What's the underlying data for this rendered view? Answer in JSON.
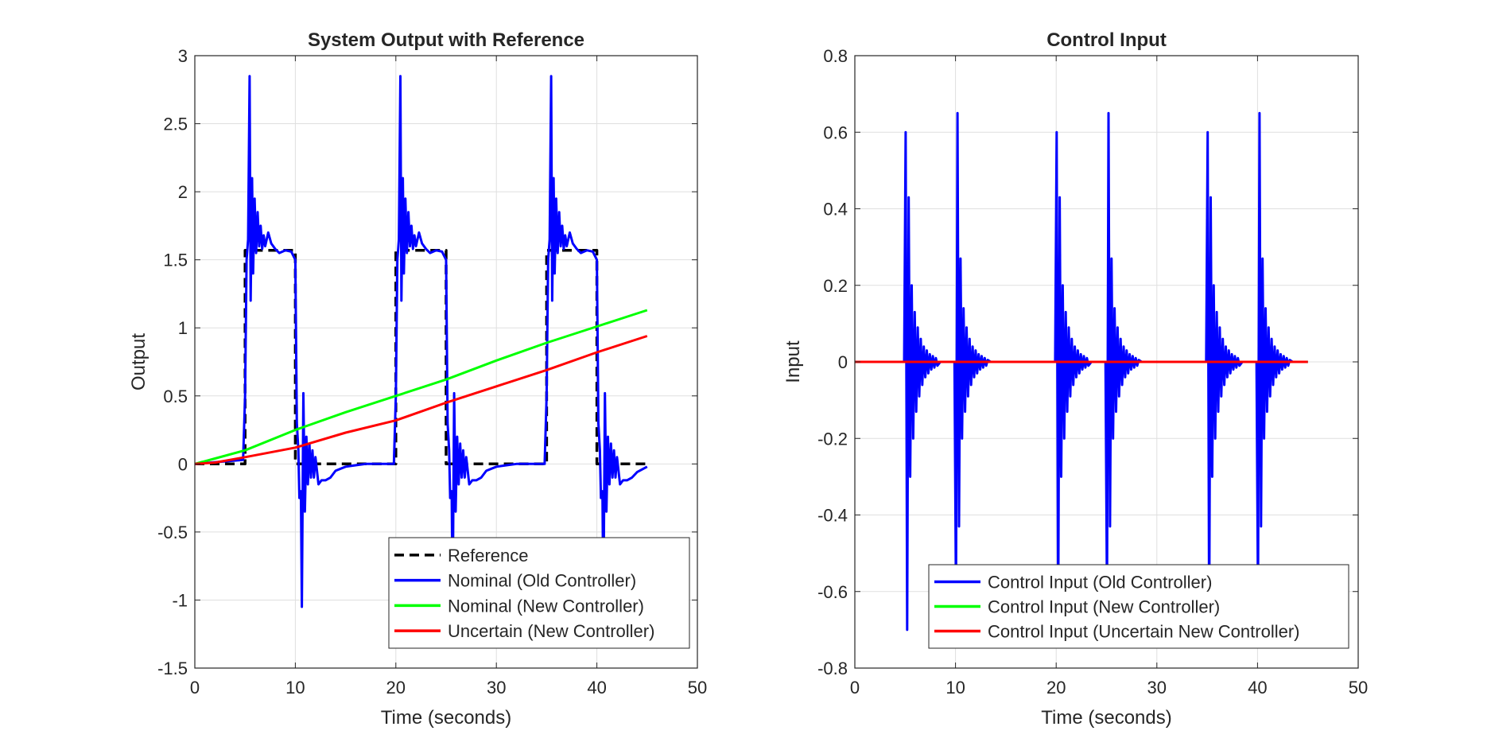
{
  "chart_data": [
    {
      "type": "line",
      "title": "System Output with Reference",
      "xlabel": "Time (seconds)",
      "ylabel": "Output",
      "xlim": [
        0,
        50
      ],
      "ylim": [
        -1.5,
        3
      ],
      "xticks": [
        "0",
        "10",
        "20",
        "30",
        "40",
        "50"
      ],
      "yticks": [
        "-1.5",
        "-1",
        "-0.5",
        "0",
        "0.5",
        "1",
        "1.5",
        "2",
        "2.5",
        "3"
      ],
      "grid": true,
      "legend_position": "bottom-right",
      "series": [
        {
          "name": "Reference",
          "color": "#000000",
          "style": "dashed",
          "x": [
            0,
            5,
            5,
            10,
            10,
            20,
            20,
            25,
            25,
            35,
            35,
            40,
            40,
            45
          ],
          "y": [
            0,
            0,
            1.57,
            1.57,
            0,
            0,
            1.57,
            1.57,
            0,
            0,
            1.57,
            1.57,
            0,
            0
          ]
        },
        {
          "name": "Nominal (Old Controller)",
          "color": "#0000ff",
          "style": "solid",
          "x": [
            0,
            4.8,
            5.0,
            5.15,
            5.3,
            5.45,
            5.55,
            5.7,
            5.8,
            5.95,
            6.1,
            6.25,
            6.4,
            6.55,
            6.7,
            6.85,
            7.0,
            7.3,
            7.6,
            8.0,
            8.4,
            9.0,
            9.6,
            10.0,
            10.15,
            10.3,
            10.4,
            10.55,
            10.65,
            10.8,
            10.95,
            11.1,
            11.25,
            11.4,
            11.55,
            11.7,
            11.85,
            12.0,
            12.3,
            12.6,
            13.0,
            13.5,
            14.0,
            15.0,
            16.0,
            17.0,
            18.0,
            19.0,
            19.8,
            20.0,
            20.15,
            20.3,
            20.45,
            20.55,
            20.7,
            20.8,
            20.95,
            21.1,
            21.25,
            21.4,
            21.55,
            21.7,
            21.85,
            22.0,
            22.3,
            22.6,
            23.0,
            23.4,
            24.0,
            24.6,
            25.0,
            25.15,
            25.3,
            25.4,
            25.55,
            25.65,
            25.8,
            25.95,
            26.1,
            26.25,
            26.4,
            26.55,
            26.7,
            26.85,
            27.0,
            27.3,
            27.6,
            28.0,
            28.5,
            29.0,
            30.0,
            31.0,
            32.0,
            33.0,
            34.0,
            34.8,
            35.0,
            35.15,
            35.3,
            35.45,
            35.55,
            35.7,
            35.8,
            35.95,
            36.1,
            36.25,
            36.4,
            36.55,
            36.7,
            36.85,
            37.0,
            37.3,
            37.6,
            38.0,
            38.4,
            39.0,
            39.6,
            40.0,
            40.15,
            40.3,
            40.4,
            40.55,
            40.65,
            40.8,
            40.95,
            41.1,
            41.25,
            41.4,
            41.55,
            41.7,
            41.85,
            42.0,
            42.3,
            42.6,
            43.0,
            43.5,
            44.0,
            44.5,
            45.0
          ],
          "y": [
            0,
            0.03,
            0.5,
            1.5,
            1.65,
            2.85,
            1.2,
            2.1,
            1.4,
            1.95,
            1.55,
            1.85,
            1.6,
            1.75,
            1.58,
            1.68,
            1.6,
            1.7,
            1.62,
            1.58,
            1.55,
            1.57,
            1.56,
            1.5,
            0.3,
            0.1,
            -0.25,
            -0.2,
            -1.05,
            0.52,
            -0.35,
            0.2,
            -0.15,
            0.15,
            -0.1,
            0.1,
            -0.1,
            0.05,
            -0.15,
            -0.12,
            -0.12,
            -0.1,
            -0.05,
            -0.02,
            -0.01,
            0,
            0,
            0,
            0,
            0.5,
            1.5,
            1.65,
            2.85,
            1.2,
            2.1,
            1.4,
            1.95,
            1.55,
            1.85,
            1.6,
            1.75,
            1.58,
            1.68,
            1.6,
            1.7,
            1.62,
            1.58,
            1.55,
            1.57,
            1.56,
            1.5,
            0.3,
            0.1,
            -0.25,
            -0.2,
            -1.05,
            0.52,
            -0.35,
            0.2,
            -0.15,
            0.15,
            -0.1,
            0.1,
            -0.1,
            0.05,
            -0.15,
            -0.12,
            -0.12,
            -0.1,
            -0.05,
            -0.02,
            -0.01,
            0,
            0,
            0,
            0,
            0.5,
            1.5,
            1.65,
            2.85,
            1.2,
            2.1,
            1.4,
            1.95,
            1.55,
            1.85,
            1.6,
            1.75,
            1.58,
            1.68,
            1.6,
            1.7,
            1.62,
            1.58,
            1.55,
            1.57,
            1.56,
            1.5,
            0.3,
            0.1,
            -0.25,
            -0.2,
            -1.05,
            0.52,
            -0.35,
            0.2,
            -0.15,
            0.15,
            -0.1,
            0.1,
            -0.1,
            0.05,
            -0.15,
            -0.12,
            -0.12,
            -0.1,
            -0.06,
            -0.04,
            -0.02
          ]
        },
        {
          "name": "Nominal (New Controller)",
          "color": "#00ff00",
          "style": "solid",
          "x": [
            0,
            2,
            5,
            10,
            15,
            20,
            25,
            30,
            35,
            40,
            45
          ],
          "y": [
            0,
            0.04,
            0.1,
            0.25,
            0.38,
            0.5,
            0.62,
            0.76,
            0.89,
            1.01,
            1.13
          ]
        },
        {
          "name": "Uncertain (New Controller)",
          "color": "#ff0000",
          "style": "solid",
          "x": [
            0,
            2,
            5,
            10,
            15,
            20,
            25,
            30,
            35,
            40,
            45
          ],
          "y": [
            0,
            0.01,
            0.05,
            0.12,
            0.23,
            0.32,
            0.45,
            0.57,
            0.69,
            0.82,
            0.94
          ]
        }
      ]
    },
    {
      "type": "line",
      "title": "Control Input",
      "xlabel": "Time (seconds)",
      "ylabel": "Input",
      "xlim": [
        0,
        50
      ],
      "ylim": [
        -0.8,
        0.8
      ],
      "xticks": [
        "0",
        "10",
        "20",
        "30",
        "40",
        "50"
      ],
      "yticks": [
        "-0.8",
        "-0.6",
        "-0.4",
        "-0.2",
        "0",
        "0.2",
        "0.4",
        "0.6",
        "0.8"
      ],
      "grid": true,
      "legend_position": "bottom-center",
      "series": [
        {
          "name": "Control Input (Old Controller)",
          "color": "#0000ff",
          "style": "solid",
          "x": [
            0,
            4.9,
            5.05,
            5.2,
            5.35,
            5.5,
            5.65,
            5.8,
            5.95,
            6.1,
            6.25,
            6.4,
            6.55,
            6.7,
            6.85,
            7.0,
            7.15,
            7.3,
            7.45,
            7.6,
            7.75,
            7.9,
            8.05,
            8.2,
            8.5,
            9.9,
            10.05,
            10.2,
            10.35,
            10.5,
            10.65,
            10.8,
            10.95,
            11.1,
            11.25,
            11.4,
            11.55,
            11.7,
            11.85,
            12.0,
            12.15,
            12.3,
            12.45,
            12.6,
            12.75,
            12.9,
            13.05,
            13.2,
            13.5,
            19.9,
            20.05,
            20.2,
            20.35,
            20.5,
            20.65,
            20.8,
            20.95,
            21.1,
            21.25,
            21.4,
            21.55,
            21.7,
            21.85,
            22.0,
            22.15,
            22.3,
            22.45,
            22.6,
            22.75,
            22.9,
            23.05,
            23.2,
            23.5,
            24.9,
            25.05,
            25.2,
            25.35,
            25.5,
            25.65,
            25.8,
            25.95,
            26.1,
            26.25,
            26.4,
            26.55,
            26.7,
            26.85,
            27.0,
            27.15,
            27.3,
            27.45,
            27.6,
            27.75,
            27.9,
            28.05,
            28.2,
            28.5,
            34.9,
            35.05,
            35.2,
            35.35,
            35.5,
            35.65,
            35.8,
            35.95,
            36.1,
            36.25,
            36.4,
            36.55,
            36.7,
            36.85,
            37.0,
            37.15,
            37.3,
            37.45,
            37.6,
            37.75,
            37.9,
            38.05,
            38.2,
            38.5,
            39.9,
            40.05,
            40.2,
            40.35,
            40.5,
            40.65,
            40.8,
            40.95,
            41.1,
            41.25,
            41.4,
            41.55,
            41.7,
            41.85,
            42.0,
            42.15,
            42.3,
            42.45,
            42.6,
            42.75,
            42.9,
            43.05,
            43.2,
            43.5,
            45
          ],
          "y": [
            0,
            0,
            0.6,
            -0.7,
            0.43,
            -0.3,
            0.2,
            -0.2,
            0.13,
            -0.13,
            0.09,
            -0.09,
            0.06,
            -0.06,
            0.04,
            -0.04,
            0.03,
            -0.03,
            0.02,
            -0.02,
            0.015,
            -0.015,
            0.01,
            -0.01,
            0,
            0,
            -0.62,
            0.65,
            -0.43,
            0.27,
            -0.2,
            0.14,
            -0.13,
            0.09,
            -0.09,
            0.06,
            -0.06,
            0.04,
            -0.04,
            0.03,
            -0.03,
            0.02,
            -0.02,
            0.015,
            -0.015,
            0.01,
            -0.01,
            0.005,
            0,
            0,
            0.6,
            -0.7,
            0.43,
            -0.3,
            0.2,
            -0.2,
            0.13,
            -0.13,
            0.09,
            -0.09,
            0.06,
            -0.06,
            0.04,
            -0.04,
            0.03,
            -0.03,
            0.02,
            -0.02,
            0.015,
            -0.015,
            0.01,
            -0.01,
            0,
            0,
            -0.62,
            0.65,
            -0.43,
            0.27,
            -0.2,
            0.14,
            -0.13,
            0.09,
            -0.09,
            0.06,
            -0.06,
            0.04,
            -0.04,
            0.03,
            -0.03,
            0.02,
            -0.02,
            0.015,
            -0.015,
            0.01,
            -0.01,
            0.005,
            0,
            0,
            0.6,
            -0.7,
            0.43,
            -0.3,
            0.2,
            -0.2,
            0.13,
            -0.13,
            0.09,
            -0.09,
            0.06,
            -0.06,
            0.04,
            -0.04,
            0.03,
            -0.03,
            0.02,
            -0.02,
            0.015,
            -0.015,
            0.01,
            -0.01,
            0,
            0,
            -0.62,
            0.65,
            -0.43,
            0.27,
            -0.2,
            0.14,
            -0.13,
            0.09,
            -0.09,
            0.06,
            -0.06,
            0.04,
            -0.04,
            0.03,
            -0.03,
            0.02,
            -0.02,
            0.015,
            -0.015,
            0.01,
            -0.01,
            0.005,
            0,
            0
          ]
        },
        {
          "name": "Control Input (New Controller)",
          "color": "#00ff00",
          "style": "solid",
          "x": [
            0,
            45
          ],
          "y": [
            0,
            0
          ]
        },
        {
          "name": "Control Input (Uncertain New Controller)",
          "color": "#ff0000",
          "style": "solid",
          "x": [
            0,
            45
          ],
          "y": [
            0,
            0
          ]
        }
      ]
    }
  ]
}
